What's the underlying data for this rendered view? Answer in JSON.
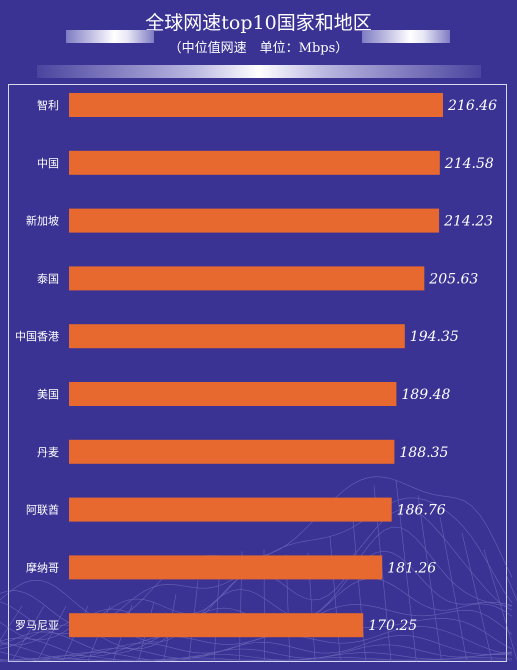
{
  "title": "全球网速top10国家和地区",
  "subtitle": "（中位值网速　单位：Mbps）",
  "colors": {
    "background": "#3a3394",
    "bar": "#e8692f",
    "text": "#ffffff",
    "mesh": "#8c88d0"
  },
  "chart_data": {
    "type": "bar",
    "orientation": "horizontal",
    "categories": [
      "智利",
      "中国",
      "新加坡",
      "泰国",
      "中国香港",
      "美国",
      "丹麦",
      "阿联酋",
      "摩纳哥",
      "罗马尼亚"
    ],
    "values": [
      216.46,
      214.58,
      214.23,
      205.63,
      194.35,
      189.48,
      188.35,
      186.76,
      181.26,
      170.25
    ],
    "value_labels": [
      "216.46",
      "214.58",
      "214.23",
      "205.63",
      "194.35",
      "189.48",
      "188.35",
      "186.76",
      "181.26",
      "170.25"
    ],
    "xlim": [
      0,
      230
    ],
    "grid": false,
    "legend": "none"
  }
}
